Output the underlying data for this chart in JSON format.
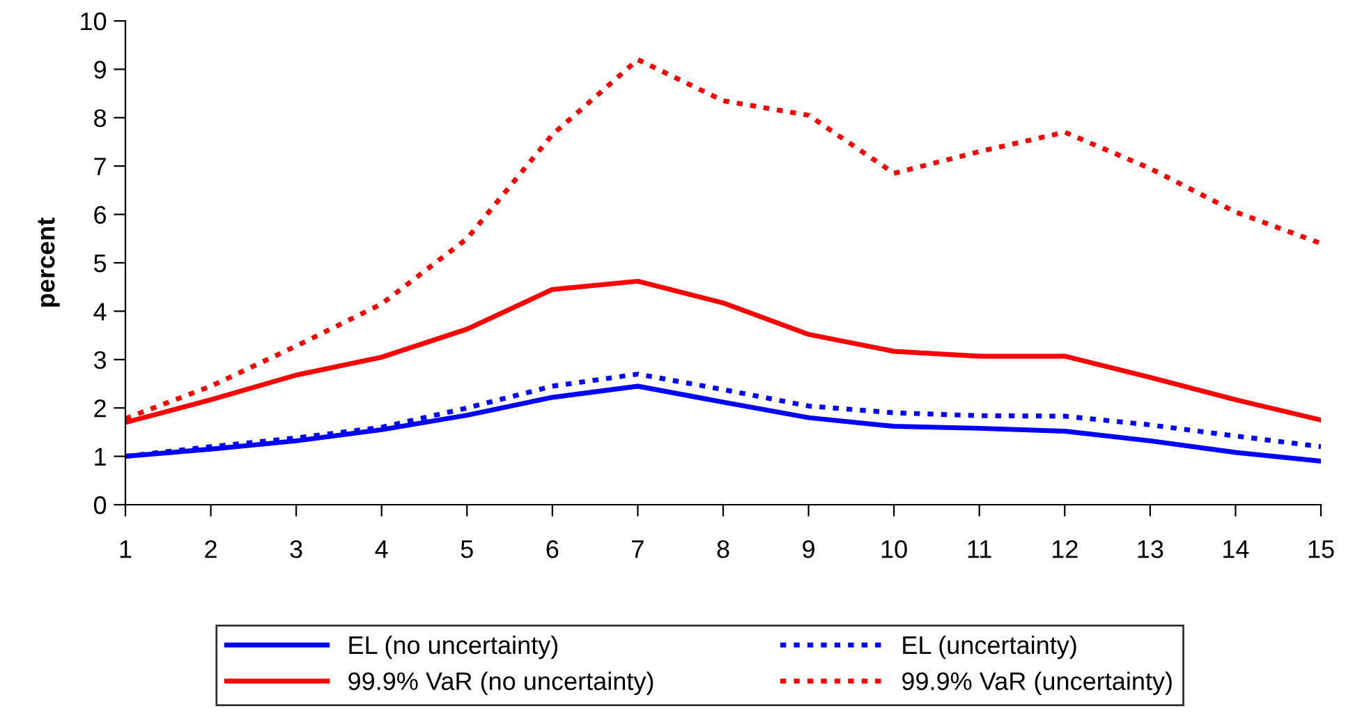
{
  "chart_data": {
    "type": "line",
    "ylabel": "percent",
    "x": [
      1,
      2,
      3,
      4,
      5,
      6,
      7,
      8,
      9,
      10,
      11,
      12,
      13,
      14,
      15
    ],
    "xlim": [
      1,
      15
    ],
    "xticks": [
      1,
      2,
      3,
      4,
      5,
      6,
      7,
      8,
      9,
      10,
      11,
      12,
      13,
      14,
      15
    ],
    "ylim": [
      0,
      10
    ],
    "yticks": [
      0,
      1,
      2,
      3,
      4,
      5,
      6,
      7,
      8,
      9,
      10
    ],
    "grid": false,
    "legend": "bottom",
    "marker": "none",
    "series": [
      {
        "name": "EL (no uncertainty)",
        "color": "#0000ff",
        "line_style": "solid",
        "values": [
          1.0,
          1.15,
          1.32,
          1.55,
          1.85,
          2.22,
          2.45,
          2.12,
          1.8,
          1.62,
          1.58,
          1.52,
          1.32,
          1.08,
          0.9
        ]
      },
      {
        "name": "99.9% VaR (no uncertainty)",
        "color": "#ff0000",
        "line_style": "solid",
        "values": [
          1.7,
          2.17,
          2.68,
          3.05,
          3.63,
          4.45,
          4.62,
          4.17,
          3.52,
          3.17,
          3.07,
          3.07,
          2.63,
          2.17,
          1.75
        ]
      },
      {
        "name": "EL (uncertainty)",
        "color": "#0000ff",
        "line_style": "dotted",
        "values": [
          1.0,
          1.2,
          1.38,
          1.6,
          2.0,
          2.45,
          2.7,
          2.38,
          2.04,
          1.9,
          1.84,
          1.83,
          1.65,
          1.42,
          1.2
        ]
      },
      {
        "name": "99.9% VaR (uncertainty)",
        "color": "#ff0000",
        "line_style": "dotted",
        "values": [
          1.78,
          2.45,
          3.28,
          4.15,
          5.5,
          7.65,
          9.2,
          8.35,
          8.05,
          6.85,
          7.3,
          7.7,
          6.95,
          6.05,
          5.4
        ]
      }
    ]
  }
}
